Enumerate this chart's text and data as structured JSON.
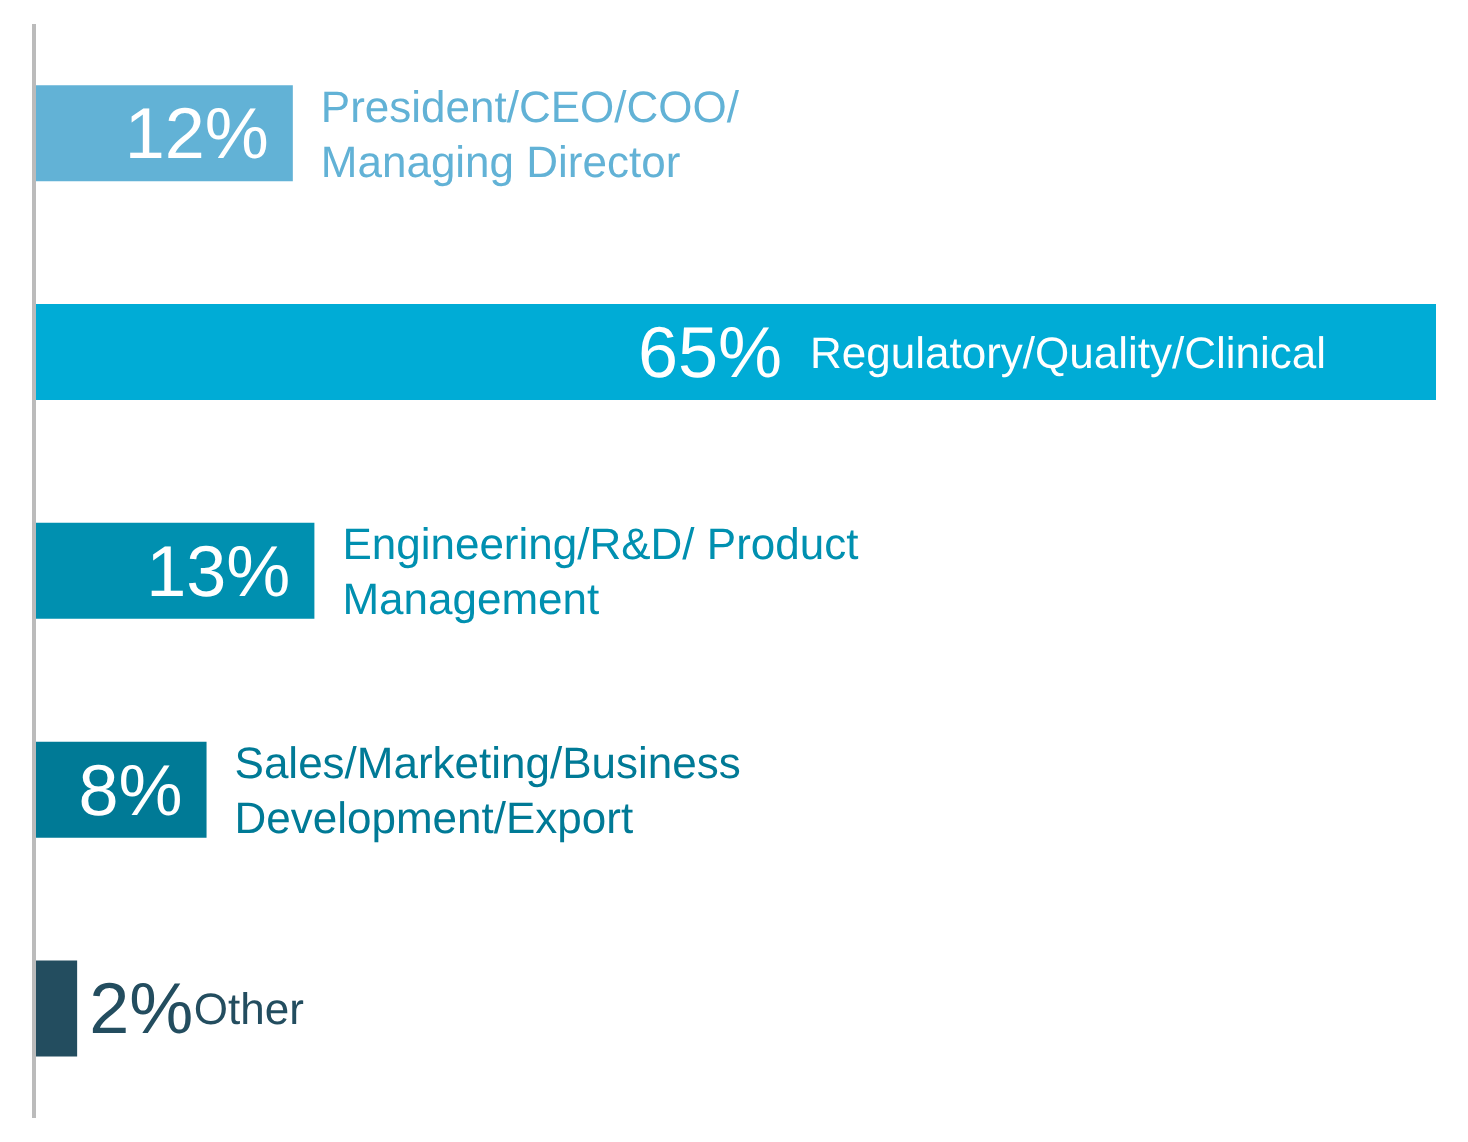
{
  "chart_data": {
    "type": "bar",
    "orientation": "horizontal",
    "categories": [
      "President/CEO/COO/ Managing Director",
      "Regulatory/Quality/Clinical",
      "Engineering/R&D/ Product Management",
      "Sales/Marketing/Business Development/Export",
      "Other"
    ],
    "values": [
      12,
      65,
      13,
      8,
      2
    ],
    "value_labels": [
      "12%",
      "65%",
      "13%",
      "8%",
      "2%"
    ],
    "colors": [
      "#62b2d6",
      "#00acd6",
      "#0090b0",
      "#007a96",
      "#234d5f"
    ],
    "grid": false,
    "legend": false
  }
}
